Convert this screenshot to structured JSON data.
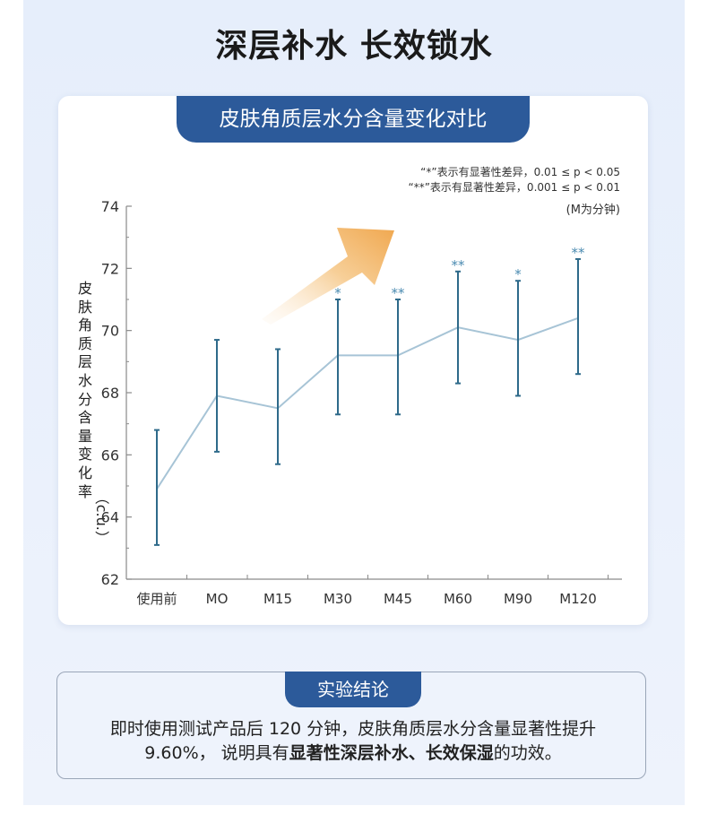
{
  "page": {
    "main_title": "深层补水 长效锁水"
  },
  "chart_card": {
    "header": "皮肤角质层水分含量变化对比",
    "note_line1": "“*”表示有显著性差异，0.01 ≤ p < 0.05",
    "note_line2": "“**”表示有显著性差异，0.001 ≤ p < 0.01",
    "note_line3": "(M为分钟)",
    "ylabel_chars": [
      "皮",
      "肤",
      "角",
      "质",
      "层",
      "水",
      "分",
      "含",
      "量",
      "变",
      "化",
      "率"
    ],
    "ylabel_unit": "（c.u.）"
  },
  "chart_data": {
    "type": "line",
    "title": "皮肤角质层水分含量变化对比",
    "ylabel": "皮肤角质层水分含量变化率（c.u.）",
    "xlabel": "",
    "categories": [
      "使用前",
      "MO",
      "M15",
      "M30",
      "M45",
      "M60",
      "M90",
      "M120"
    ],
    "ylim": [
      62,
      74
    ],
    "yticks": [
      62,
      64,
      66,
      68,
      70,
      72,
      74
    ],
    "series": [
      {
        "values": [
          64.9,
          67.9,
          67.5,
          69.2,
          69.2,
          70.1,
          69.7,
          70.4
        ],
        "err_low": [
          63.1,
          66.1,
          65.7,
          67.3,
          67.3,
          68.3,
          67.9,
          68.6
        ],
        "err_high": [
          66.8,
          69.7,
          69.4,
          71.0,
          71.0,
          71.9,
          71.6,
          72.3
        ],
        "significance": [
          "",
          "",
          "",
          "*",
          "**",
          "**",
          "*",
          "**"
        ]
      }
    ],
    "colors": {
      "line": "#a7c4d6",
      "error_bar": "#2e6a8a",
      "star": "#4a8ab0"
    },
    "grid": false
  },
  "conclusion": {
    "header": "实验结论",
    "line1": "即时使用测试产品后 120 分钟，皮肤角质层水分含量显著性提升",
    "line2_prefix": "9.60%，  说明具有",
    "line2_bold": "显著性深层补水、长效保湿",
    "line2_suffix": "的功效。"
  }
}
